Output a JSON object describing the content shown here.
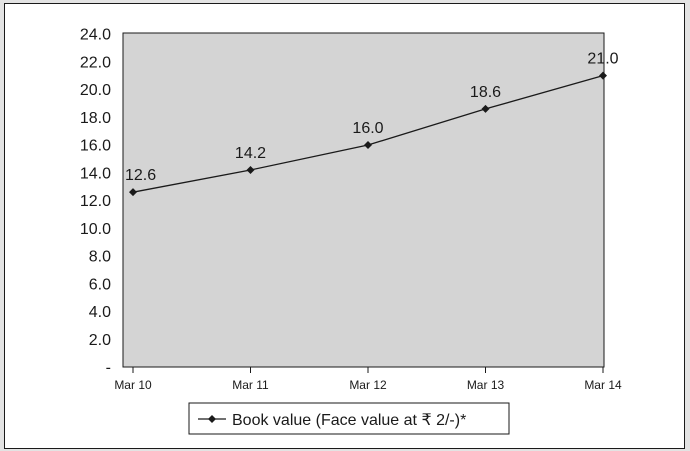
{
  "chart_data": {
    "type": "line",
    "categories": [
      "Mar 10",
      "Mar 11",
      "Mar 12",
      "Mar 13",
      "Mar 14"
    ],
    "series": [
      {
        "name": "Book value (Face value at ₹ 2/-)*",
        "values": [
          12.6,
          14.2,
          16.0,
          18.6,
          21.0
        ],
        "labels": [
          "12.6",
          "14.2",
          "16.0",
          "18.6",
          "21.0"
        ]
      }
    ],
    "yticks": [
      "-",
      "2.0",
      "4.0",
      "6.0",
      "8.0",
      "10.0",
      "12.0",
      "14.0",
      "16.0",
      "18.0",
      "20.0",
      "22.0",
      "24.0"
    ],
    "ylim": [
      0,
      24
    ],
    "grid": false,
    "legend": "bottom-center",
    "colors": {
      "plot_bg": "#d4d4d4",
      "line": "#1a1a1a",
      "page_bg": "#e3e3e3"
    }
  }
}
